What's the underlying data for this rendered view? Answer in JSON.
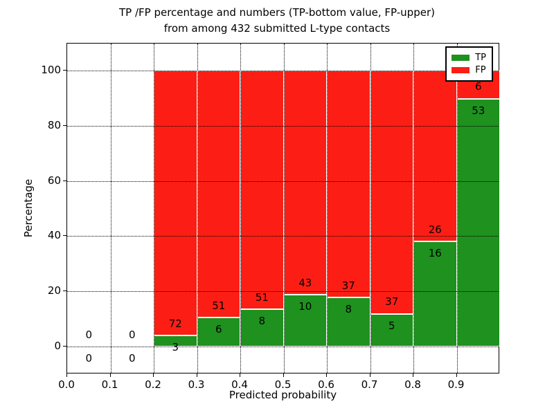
{
  "title": {
    "line1": "TP /FP percentage and numbers (TP-bottom value, FP-upper)",
    "line2": "from among 432 submitted L-type contacts"
  },
  "axes": {
    "xlabel": "Predicted probability",
    "ylabel": "Percentage",
    "xtick_labels": [
      "0.0",
      "0.1",
      "0.2",
      "0.3",
      "0.4",
      "0.5",
      "0.6",
      "0.7",
      "0.8",
      "0.9"
    ],
    "ytick_labels": [
      "0",
      "20",
      "40",
      "60",
      "80",
      "100"
    ]
  },
  "legend": {
    "items": [
      {
        "label": "TP",
        "color": "#1e911e"
      },
      {
        "label": "FP",
        "color": "#fc1e14"
      }
    ]
  },
  "colors": {
    "tp": "#1e911e",
    "fp": "#fc1e14",
    "bar_edge": "#ffffff",
    "grid": "#000000"
  },
  "chart_data": {
    "type": "bar",
    "subtype": "stacked-percentage",
    "title": "TP /FP percentage and numbers (TP-bottom value, FP-upper) from among 432 submitted L-type contacts",
    "xlabel": "Predicted probability",
    "ylabel": "Percentage",
    "xlim": [
      0.0,
      1.0
    ],
    "ylim": [
      -10,
      110
    ],
    "xticks": [
      0.0,
      0.1,
      0.2,
      0.3,
      0.4,
      0.5,
      0.6,
      0.7,
      0.8,
      0.9
    ],
    "yticks": [
      0,
      20,
      40,
      60,
      80,
      100
    ],
    "grid": true,
    "legend_position": "upper right",
    "total_contacts": 432,
    "series_note": "TP count labeled below stack boundary, FP count labeled above it; bar heights are TP/(TP+FP) percent, stacked to 100",
    "bins": [
      {
        "x_start": 0.0,
        "x_end": 0.1,
        "tp": 0,
        "fp": 0
      },
      {
        "x_start": 0.1,
        "x_end": 0.2,
        "tp": 0,
        "fp": 0
      },
      {
        "x_start": 0.2,
        "x_end": 0.3,
        "tp": 3,
        "fp": 72
      },
      {
        "x_start": 0.3,
        "x_end": 0.4,
        "tp": 6,
        "fp": 51
      },
      {
        "x_start": 0.4,
        "x_end": 0.5,
        "tp": 8,
        "fp": 51
      },
      {
        "x_start": 0.5,
        "x_end": 0.6,
        "tp": 10,
        "fp": 43
      },
      {
        "x_start": 0.6,
        "x_end": 0.7,
        "tp": 8,
        "fp": 37
      },
      {
        "x_start": 0.7,
        "x_end": 0.8,
        "tp": 5,
        "fp": 37
      },
      {
        "x_start": 0.8,
        "x_end": 0.9,
        "tp": 16,
        "fp": 26
      },
      {
        "x_start": 0.9,
        "x_end": 1.0,
        "tp": 53,
        "fp": 6
      }
    ]
  }
}
